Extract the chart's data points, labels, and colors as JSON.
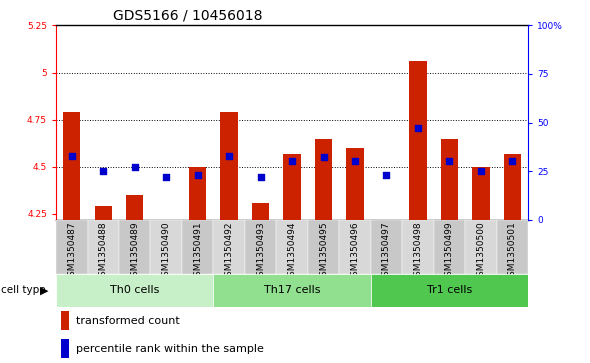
{
  "title": "GDS5166 / 10456018",
  "samples": [
    "GSM1350487",
    "GSM1350488",
    "GSM1350489",
    "GSM1350490",
    "GSM1350491",
    "GSM1350492",
    "GSM1350493",
    "GSM1350494",
    "GSM1350495",
    "GSM1350496",
    "GSM1350497",
    "GSM1350498",
    "GSM1350499",
    "GSM1350500",
    "GSM1350501"
  ],
  "bar_values": [
    4.79,
    4.29,
    4.35,
    4.22,
    4.5,
    4.79,
    4.31,
    4.57,
    4.65,
    4.6,
    4.22,
    5.06,
    4.65,
    4.5,
    4.57
  ],
  "percentile_values": [
    33,
    25,
    27,
    22,
    23,
    33,
    22,
    30,
    32,
    30,
    23,
    47,
    30,
    25,
    30
  ],
  "bar_bottom": 4.22,
  "ylim_left": [
    4.22,
    5.25
  ],
  "ylim_right": [
    0,
    100
  ],
  "yticks_left": [
    4.25,
    4.5,
    4.75,
    5.0,
    5.25
  ],
  "yticks_right": [
    0,
    25,
    50,
    75,
    100
  ],
  "ytick_labels_left": [
    "4.25",
    "4.5",
    "4.75",
    "5",
    "5.25"
  ],
  "ytick_labels_right": [
    "0",
    "25",
    "50",
    "75",
    "100%"
  ],
  "gridlines": [
    5.0,
    4.75,
    4.5
  ],
  "bar_color": "#cc2200",
  "dot_color": "#0000cc",
  "cell_types": [
    {
      "label": "Th0 cells",
      "start": 0,
      "end": 5,
      "color": "#c8f0c8"
    },
    {
      "label": "Th17 cells",
      "start": 5,
      "end": 10,
      "color": "#90e090"
    },
    {
      "label": "Tr1 cells",
      "start": 10,
      "end": 15,
      "color": "#50c850"
    }
  ],
  "legend_bar_label": "transformed count",
  "legend_dot_label": "percentile rank within the sample",
  "cell_type_label": "cell type",
  "plot_bg_color": "#ffffff",
  "xtick_bg_even": "#c8c8c8",
  "xtick_bg_odd": "#d8d8d8",
  "bar_width": 0.55,
  "title_fontsize": 10,
  "tick_fontsize": 6.5,
  "legend_fontsize": 8
}
